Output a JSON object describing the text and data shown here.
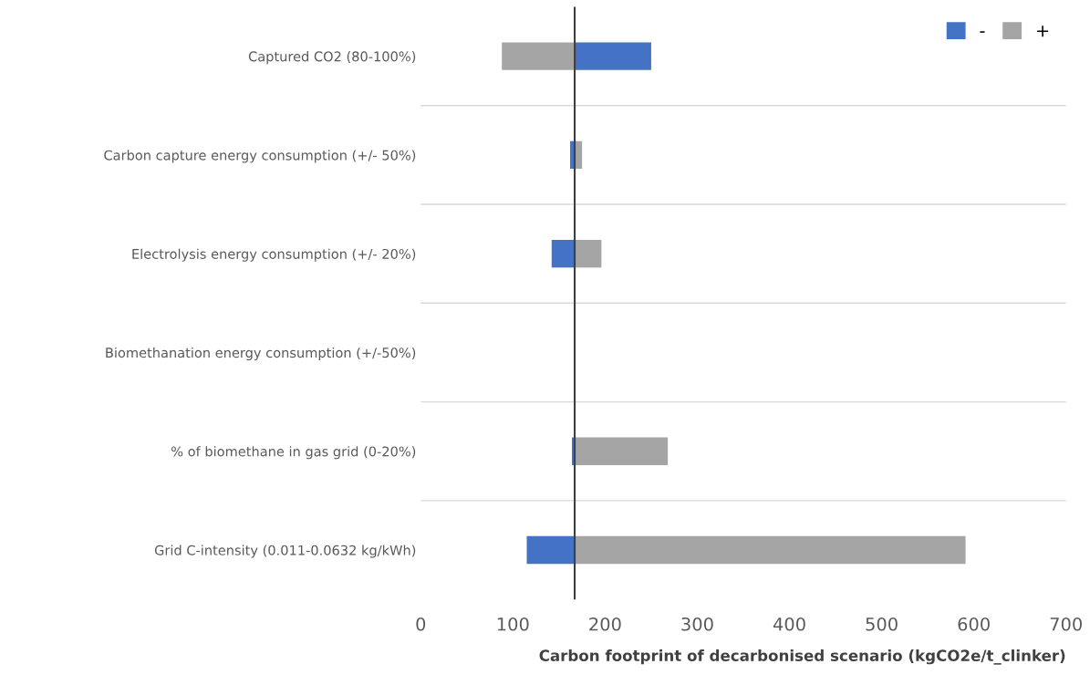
{
  "chart_data": {
    "type": "bar",
    "orientation": "horizontal",
    "categories": [
      "Captured CO2 (80-100%)",
      "Carbon capture energy consumption (+/- 50%)",
      "Electrolysis energy consumption (+/- 20%)",
      "Biomethanation energy consumption (+/-50%)",
      "% of biomethane in gas grid (0-20%)",
      "Grid C-intensity (0.011-0.0632 kg/kWh)"
    ],
    "series": [
      {
        "name": "-",
        "color": "#4472c4",
        "base": [
          167,
          167,
          167,
          null,
          167,
          167
        ],
        "values": [
          83,
          -5,
          -25,
          null,
          -3,
          -52
        ]
      },
      {
        "name": "+",
        "color": "#a5a5a5",
        "base": [
          167,
          167,
          167,
          null,
          167,
          167
        ],
        "values": [
          -79,
          8,
          29,
          null,
          101,
          424
        ]
      }
    ],
    "xlabel": "Carbon footprint of decarbonised scenario (kgCO2e/t_clinker)",
    "xlim": [
      0,
      700
    ],
    "xticks": [
      0,
      100,
      200,
      300,
      400,
      500,
      600,
      700
    ],
    "ref_lines": [
      {
        "axis": "x",
        "value": 167,
        "color": "#404040"
      }
    ],
    "grid": "y",
    "legend": "top right"
  }
}
